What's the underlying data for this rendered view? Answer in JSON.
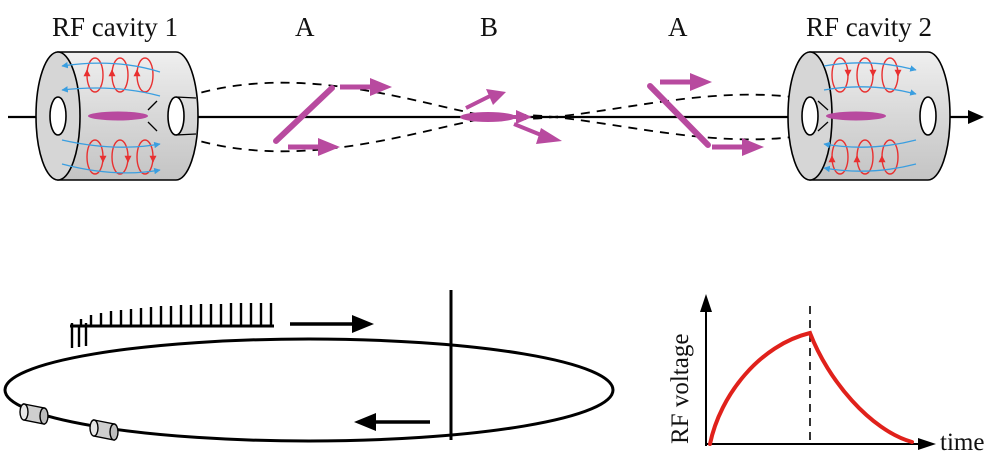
{
  "labels": {
    "cavity1": "RF cavity 1",
    "cavity2": "RF cavity 2",
    "point_a_left": "A",
    "point_b": "B",
    "point_a_right": "A"
  },
  "plot": {
    "ylabel": "RF voltage",
    "xlabel": "time"
  },
  "colors": {
    "beam_magenta": "#b84a9f",
    "field_red": "#e83030",
    "field_blue": "#3a9ee0",
    "voltage_curve": "#e0211b",
    "cavity_gray": "#d4d4d4"
  }
}
